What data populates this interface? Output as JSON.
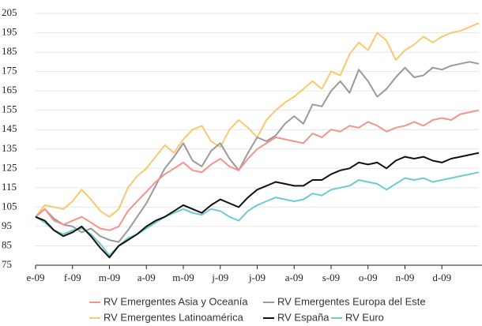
{
  "chart_data": {
    "type": "line",
    "x": [
      0,
      0.25,
      0.5,
      0.75,
      1,
      1.25,
      1.5,
      1.75,
      2,
      2.25,
      2.5,
      2.75,
      3,
      3.25,
      3.5,
      3.75,
      4,
      4.25,
      4.5,
      4.75,
      5,
      5.25,
      5.5,
      5.75,
      6,
      6.25,
      6.5,
      6.75,
      7,
      7.25,
      7.5,
      7.75,
      8,
      8.25,
      8.5,
      8.75,
      9,
      9.25,
      9.5,
      9.75,
      10,
      10.25,
      10.5,
      10.75,
      11,
      11.25,
      11.5,
      11.75,
      12
    ],
    "series": [
      {
        "name": "RV Emergentes Asia y Oceanía",
        "color": "#f4948a",
        "values": [
          100,
          104,
          98,
          96,
          98,
          100,
          97,
          94,
          93,
          95,
          103,
          108,
          113,
          118,
          122,
          125,
          128,
          124,
          123,
          127,
          130,
          126,
          124,
          130,
          135,
          138,
          141,
          140,
          139,
          138,
          143,
          141,
          145,
          144,
          147,
          146,
          149,
          147,
          144,
          146,
          147,
          149,
          147,
          150,
          151,
          150,
          153,
          154,
          155
        ]
      },
      {
        "name": "RV Emergentes Europa del Este",
        "color": "#9a9a9a",
        "values": [
          100,
          104,
          99,
          96,
          95,
          92,
          94,
          90,
          88,
          87,
          93,
          100,
          107,
          116,
          125,
          131,
          138,
          129,
          126,
          134,
          138,
          130,
          124,
          133,
          141,
          139,
          142,
          148,
          152,
          148,
          158,
          157,
          165,
          170,
          164,
          176,
          170,
          162,
          166,
          172,
          177,
          172,
          173,
          177,
          176,
          178,
          179,
          180,
          179
        ]
      },
      {
        "name": "RV Emergentes Latinoamérica",
        "color": "#f9c86f",
        "values": [
          100,
          106,
          105,
          104,
          108,
          114,
          109,
          103,
          100,
          104,
          115,
          121,
          125,
          131,
          137,
          133,
          140,
          145,
          147,
          139,
          136,
          145,
          150,
          146,
          141,
          150,
          155,
          159,
          162,
          166,
          170,
          166,
          175,
          173,
          184,
          190,
          186,
          195,
          191,
          181,
          186,
          189,
          193,
          190,
          193,
          195,
          196,
          198,
          200
        ]
      },
      {
        "name": "RV España",
        "color": "#111111",
        "values": [
          100,
          98,
          93,
          90,
          92,
          95,
          90,
          84,
          79,
          85,
          88,
          91,
          95,
          98,
          100,
          103,
          106,
          104,
          102,
          106,
          109,
          107,
          105,
          110,
          114,
          116,
          118,
          117,
          116,
          116,
          119,
          119,
          122,
          124,
          125,
          128,
          127,
          128,
          125,
          129,
          131,
          130,
          131,
          129,
          128,
          130,
          131,
          132,
          133
        ]
      },
      {
        "name": "RV Euro",
        "color": "#6ecbcb",
        "values": [
          100,
          97,
          93,
          91,
          93,
          94,
          91,
          86,
          80,
          85,
          89,
          91,
          94,
          97,
          100,
          102,
          104,
          102,
          101,
          104,
          103,
          100,
          98,
          103,
          106,
          108,
          110,
          109,
          108,
          109,
          112,
          111,
          114,
          115,
          116,
          119,
          118,
          117,
          114,
          117,
          120,
          119,
          120,
          118,
          119,
          120,
          121,
          122,
          123
        ]
      }
    ],
    "xlim": [
      0,
      12
    ],
    "xticks": [
      {
        "value": 0,
        "label": "e-09"
      },
      {
        "value": 1,
        "label": "f-09"
      },
      {
        "value": 2,
        "label": "m-09"
      },
      {
        "value": 3,
        "label": "a-09"
      },
      {
        "value": 4,
        "label": "m-09"
      },
      {
        "value": 5,
        "label": "j-09"
      },
      {
        "value": 6,
        "label": "j-09"
      },
      {
        "value": 7,
        "label": "a-09"
      },
      {
        "value": 8,
        "label": "s-09"
      },
      {
        "value": 9,
        "label": "o-09"
      },
      {
        "value": 10,
        "label": "n-09"
      },
      {
        "value": 11,
        "label": "d-09"
      }
    ],
    "ylim": [
      75,
      205
    ],
    "yticks": [
      75,
      85,
      95,
      105,
      115,
      125,
      135,
      145,
      155,
      165,
      175,
      185,
      195,
      205
    ],
    "grid": true,
    "legend": "bottom"
  }
}
